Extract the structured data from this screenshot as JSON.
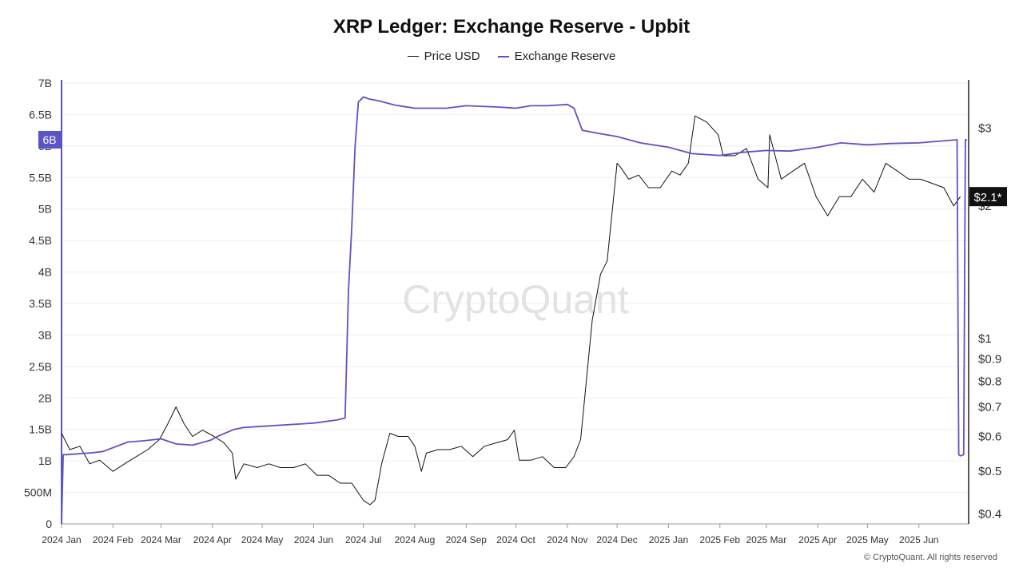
{
  "chart_data": {
    "type": "line",
    "title": "XRP Ledger: Exchange Reserve - Upbit",
    "legend_placement": "top-center",
    "grid": true,
    "watermark": "CryptoQuant",
    "copyright": "© CryptoQuant. All rights reserved",
    "colors": {
      "price": "#111111",
      "reserve": "#5b54c4",
      "badge": "#5b54c4"
    },
    "x_tick_labels": [
      "2024 Jan",
      "2024 Feb",
      "2024 Mar",
      "2024 Apr",
      "2024 May",
      "2024 Jun",
      "2024 Jul",
      "2024 Aug",
      "2024 Sep",
      "2024 Oct",
      "2024 Nov",
      "2024 Dec",
      "2025 Jan",
      "2025 Feb",
      "2025 Mar",
      "2025 Apr",
      "2025 May",
      "2025 Jun"
    ],
    "x_range": [
      "2024-01-01",
      "2025-07-01"
    ],
    "y_left": {
      "label": "",
      "range": [
        0,
        7000000000
      ],
      "ticks": [
        0,
        500000000,
        1000000000,
        1500000000,
        2000000000,
        2500000000,
        3000000000,
        3500000000,
        4000000000,
        4500000000,
        5000000000,
        5500000000,
        6000000000,
        6500000000,
        7000000000
      ],
      "tick_labels": [
        "0",
        "500M",
        "1B",
        "1.5B",
        "2B",
        "2.5B",
        "3B",
        "3.5B",
        "4B",
        "4.5B",
        "5B",
        "5.5B",
        "6B",
        "6.5B",
        "7B"
      ],
      "current_value_badge": "6B"
    },
    "y_right": {
      "label": "",
      "scale": "log",
      "range": [
        0.38,
        3.8
      ],
      "ticks": [
        0.4,
        0.5,
        0.6,
        0.7,
        0.8,
        0.9,
        1,
        2,
        3
      ],
      "tick_labels": [
        "$0.4",
        "$0.5",
        "$0.6",
        "$0.7",
        "$0.8",
        "$0.9",
        "$1",
        "$2",
        "$3"
      ],
      "current_value_badge": "$2.1*"
    },
    "series": [
      {
        "name": "Price USD",
        "axis": "right",
        "x": [
          "2024-01-01",
          "2024-01-06",
          "2024-01-12",
          "2024-01-18",
          "2024-01-24",
          "2024-02-01",
          "2024-02-08",
          "2024-02-15",
          "2024-02-22",
          "2024-02-29",
          "2024-03-05",
          "2024-03-10",
          "2024-03-15",
          "2024-03-20",
          "2024-03-26",
          "2024-04-02",
          "2024-04-08",
          "2024-04-13",
          "2024-04-15",
          "2024-04-20",
          "2024-04-28",
          "2024-05-05",
          "2024-05-12",
          "2024-05-20",
          "2024-05-27",
          "2024-06-03",
          "2024-06-10",
          "2024-06-17",
          "2024-06-24",
          "2024-07-01",
          "2024-07-05",
          "2024-07-08",
          "2024-07-12",
          "2024-07-17",
          "2024-07-22",
          "2024-07-28",
          "2024-08-01",
          "2024-08-05",
          "2024-08-08",
          "2024-08-15",
          "2024-08-22",
          "2024-08-29",
          "2024-09-05",
          "2024-09-12",
          "2024-09-19",
          "2024-09-26",
          "2024-09-30",
          "2024-10-03",
          "2024-10-10",
          "2024-10-17",
          "2024-10-24",
          "2024-10-31",
          "2024-11-05",
          "2024-11-09",
          "2024-11-12",
          "2024-11-16",
          "2024-11-21",
          "2024-11-25",
          "2024-12-01",
          "2024-12-03",
          "2024-12-08",
          "2024-12-14",
          "2024-12-20",
          "2024-12-27",
          "2025-01-03",
          "2025-01-08",
          "2025-01-13",
          "2025-01-17",
          "2025-01-24",
          "2025-01-31",
          "2025-02-03",
          "2025-02-10",
          "2025-02-17",
          "2025-02-24",
          "2025-03-02",
          "2025-03-03",
          "2025-03-10",
          "2025-03-17",
          "2025-03-24",
          "2025-03-31",
          "2025-04-07",
          "2025-04-14",
          "2025-04-21",
          "2025-04-28",
          "2025-05-05",
          "2025-05-12",
          "2025-05-19",
          "2025-05-26",
          "2025-06-02",
          "2025-06-09",
          "2025-06-16",
          "2025-06-22",
          "2025-06-26"
        ],
        "values": [
          0.61,
          0.56,
          0.57,
          0.52,
          0.53,
          0.5,
          0.52,
          0.54,
          0.56,
          0.59,
          0.64,
          0.7,
          0.64,
          0.6,
          0.62,
          0.6,
          0.58,
          0.55,
          0.48,
          0.52,
          0.51,
          0.52,
          0.51,
          0.51,
          0.52,
          0.49,
          0.49,
          0.47,
          0.47,
          0.43,
          0.42,
          0.43,
          0.52,
          0.61,
          0.6,
          0.6,
          0.57,
          0.5,
          0.55,
          0.56,
          0.56,
          0.57,
          0.54,
          0.57,
          0.58,
          0.59,
          0.62,
          0.53,
          0.53,
          0.54,
          0.51,
          0.51,
          0.54,
          0.59,
          0.77,
          1.1,
          1.4,
          1.5,
          2.5,
          2.45,
          2.3,
          2.35,
          2.2,
          2.2,
          2.4,
          2.35,
          2.5,
          3.2,
          3.1,
          2.9,
          2.6,
          2.6,
          2.7,
          2.3,
          2.2,
          2.9,
          2.3,
          2.4,
          2.5,
          2.1,
          1.9,
          2.1,
          2.1,
          2.3,
          2.15,
          2.5,
          2.4,
          2.3,
          2.3,
          2.25,
          2.2,
          2.0,
          2.1
        ]
      },
      {
        "name": "Exchange Reserve",
        "axis": "left",
        "x": [
          "2024-01-01",
          "2024-01-02",
          "2024-01-04",
          "2024-01-20",
          "2024-01-26",
          "2024-02-10",
          "2024-02-20",
          "2024-03-01",
          "2024-03-10",
          "2024-03-20",
          "2024-03-31",
          "2024-04-05",
          "2024-04-14",
          "2024-04-20",
          "2024-05-01",
          "2024-05-20",
          "2024-06-01",
          "2024-06-15",
          "2024-06-20",
          "2024-06-22",
          "2024-06-24",
          "2024-06-26",
          "2024-06-28",
          "2024-06-30",
          "2024-07-01",
          "2024-07-02",
          "2024-07-04",
          "2024-07-10",
          "2024-07-20",
          "2024-08-01",
          "2024-08-20",
          "2024-09-01",
          "2024-09-20",
          "2024-10-01",
          "2024-10-10",
          "2024-10-20",
          "2024-11-01",
          "2024-11-05",
          "2024-11-10",
          "2024-11-20",
          "2024-12-01",
          "2024-12-15",
          "2025-01-01",
          "2025-01-15",
          "2025-02-01",
          "2025-02-15",
          "2025-03-01",
          "2025-03-15",
          "2025-04-01",
          "2025-04-15",
          "2025-05-01",
          "2025-05-15",
          "2025-06-01",
          "2025-06-15",
          "2025-06-24",
          "2025-06-25",
          "2025-06-26",
          "2025-06-28",
          "2025-06-29",
          "2025-06-30"
        ],
        "values": [
          0,
          1100000000,
          1100000000,
          1130000000,
          1150000000,
          1300000000,
          1320000000,
          1350000000,
          1270000000,
          1250000000,
          1330000000,
          1400000000,
          1500000000,
          1530000000,
          1550000000,
          1580000000,
          1600000000,
          1650000000,
          1680000000,
          3700000000,
          4700000000,
          6000000000,
          6700000000,
          6750000000,
          6780000000,
          6770000000,
          6750000000,
          6720000000,
          6650000000,
          6600000000,
          6600000000,
          6640000000,
          6620000000,
          6600000000,
          6640000000,
          6640000000,
          6660000000,
          6600000000,
          6250000000,
          6200000000,
          6150000000,
          6050000000,
          5980000000,
          5880000000,
          5850000000,
          5900000000,
          5930000000,
          5920000000,
          5980000000,
          6050000000,
          6020000000,
          6040000000,
          6050000000,
          6080000000,
          6100000000,
          1100000000,
          1080000000,
          1100000000,
          6100000000,
          6100000000
        ]
      }
    ]
  }
}
